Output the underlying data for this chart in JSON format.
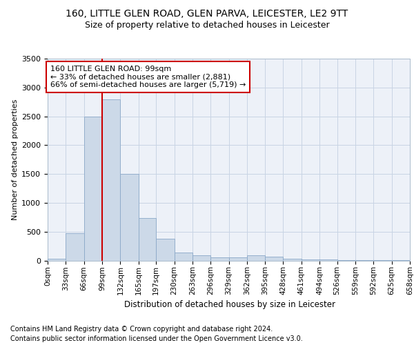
{
  "title1": "160, LITTLE GLEN ROAD, GLEN PARVA, LEICESTER, LE2 9TT",
  "title2": "Size of property relative to detached houses in Leicester",
  "xlabel": "Distribution of detached houses by size in Leicester",
  "ylabel": "Number of detached properties",
  "footnote1": "Contains HM Land Registry data © Crown copyright and database right 2024.",
  "footnote2": "Contains public sector information licensed under the Open Government Licence v3.0.",
  "annotation_line1": "160 LITTLE GLEN ROAD: 99sqm",
  "annotation_line2": "← 33% of detached houses are smaller (2,881)",
  "annotation_line3": "66% of semi-detached houses are larger (5,719) →",
  "property_size": 99,
  "bin_edges": [
    0,
    33,
    66,
    99,
    132,
    165,
    197,
    230,
    263,
    296,
    329,
    362,
    395,
    428,
    461,
    494,
    526,
    559,
    592,
    625,
    658
  ],
  "bar_heights": [
    30,
    470,
    2500,
    2800,
    1500,
    730,
    375,
    140,
    85,
    55,
    55,
    95,
    70,
    30,
    20,
    15,
    10,
    8,
    5,
    3
  ],
  "bar_color": "#ccd9e8",
  "bar_edge_color": "#8aa8c8",
  "vline_color": "#cc0000",
  "vline_x": 99,
  "ylim": [
    0,
    3500
  ],
  "yticks": [
    0,
    500,
    1000,
    1500,
    2000,
    2500,
    3000,
    3500
  ],
  "bg_color": "#edf1f8",
  "grid_color": "#c8d4e4",
  "title1_fontsize": 10,
  "title2_fontsize": 9,
  "axis_fontsize": 8,
  "annotation_fontsize": 8,
  "footnote_fontsize": 7
}
